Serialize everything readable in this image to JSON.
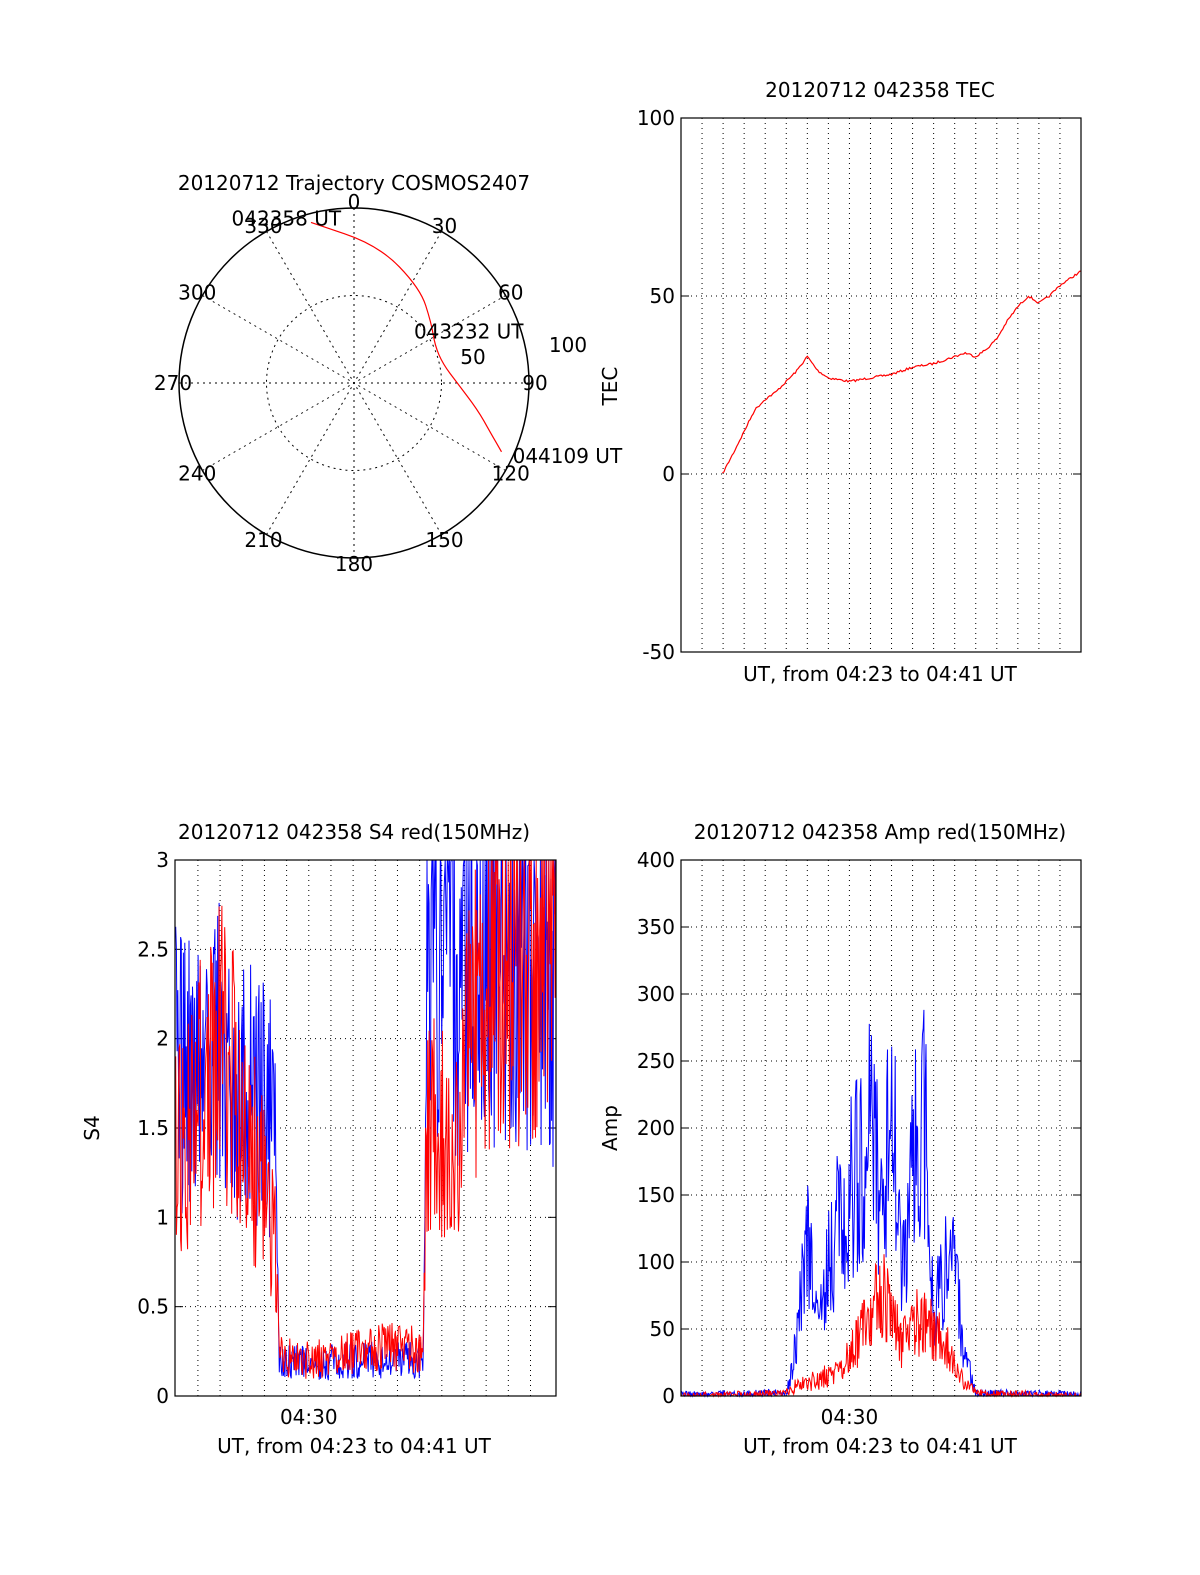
{
  "colors": {
    "axis": "#000000",
    "grid": "#000000",
    "trace_red": "#ff0000",
    "trace_blue": "#0000ff"
  },
  "chart_data": [
    {
      "id": "trajectory",
      "type": "polar",
      "title": "20120712 Trajectory COSMOS2407",
      "azimuth_labels": [
        "0",
        "30",
        "60",
        "90",
        "120",
        "150",
        "180",
        "210",
        "240",
        "270",
        "300",
        "330"
      ],
      "radial_labels": [
        "50",
        "100"
      ],
      "grid": true,
      "time_labels": [
        {
          "text": "042358 UT",
          "az": 330,
          "r": 100
        },
        {
          "text": "043232 UT",
          "az": 63,
          "r": 50
        },
        {
          "text": "044109 UT",
          "az": 115,
          "r": 100
        }
      ],
      "track": [
        {
          "az": 345,
          "r": 95
        },
        {
          "az": 10,
          "r": 80
        },
        {
          "az": 35,
          "r": 66
        },
        {
          "az": 52,
          "r": 56
        },
        {
          "az": 65,
          "r": 51
        },
        {
          "az": 78,
          "r": 52
        },
        {
          "az": 90,
          "r": 59
        },
        {
          "az": 102,
          "r": 72
        },
        {
          "az": 110,
          "r": 83
        },
        {
          "az": 115,
          "r": 93
        }
      ]
    },
    {
      "id": "tec",
      "type": "line",
      "title": "20120712 042358 TEC",
      "xlabel": "UT, from 04:23 to 04:41 UT",
      "ylabel": "TEC",
      "ylim": [
        -50,
        100
      ],
      "yticks": [
        "100",
        "50",
        "0",
        "-50"
      ],
      "xlim": [
        "04:22",
        "04:41"
      ],
      "grid": true,
      "series": [
        {
          "color": "red",
          "x": [
            "04:23:58",
            "04:24:30",
            "04:25:00",
            "04:25:30",
            "04:26:00",
            "04:26:30",
            "04:27:00",
            "04:27:30",
            "04:28:00",
            "04:28:30",
            "04:29:00",
            "04:30:00",
            "04:31:00",
            "04:32:00",
            "04:33:00",
            "04:34:00",
            "04:35:00",
            "04:35:30",
            "04:36:00",
            "04:36:30",
            "04:37:00",
            "04:37:30",
            "04:38:00",
            "04:38:30",
            "04:39:00",
            "04:39:30",
            "04:40:00",
            "04:40:30",
            "04:41:00"
          ],
          "y": [
            0,
            6,
            12,
            18,
            21,
            23,
            26,
            29,
            33,
            29,
            27,
            26,
            27,
            28,
            30,
            31,
            33,
            34,
            33,
            35,
            38,
            43,
            47,
            50,
            48,
            50,
            53,
            55,
            57
          ]
        }
      ]
    },
    {
      "id": "s4",
      "type": "line",
      "title": "20120712 042358 S4 red(150MHz)",
      "xlabel": "UT, from 04:23 to 04:41 UT",
      "ylabel": "S4",
      "ylim": [
        0,
        3
      ],
      "yticks": [
        "3",
        "2.5",
        "2",
        "1.5",
        "1",
        "0.5",
        "0"
      ],
      "xlim": [
        "04:23:58",
        "04:41:09"
      ],
      "xticks": [
        "04:30"
      ],
      "grid": true,
      "series": [
        {
          "color": "blue",
          "x": [
            "04:24:00",
            "04:26:00",
            "04:28:30",
            "04:28:40",
            "04:30:00",
            "04:32:00",
            "04:34:00",
            "04:35:10",
            "04:35:20",
            "04:36:30",
            "04:38:00",
            "04:40:00",
            "04:41:09"
          ],
          "y": [
            1.8,
            1.9,
            1.5,
            0.2,
            0.18,
            0.2,
            0.2,
            0.2,
            2.8,
            2.3,
            2.5,
            2.4,
            2.2
          ]
        },
        {
          "color": "red",
          "x": [
            "04:24:00",
            "04:26:00",
            "04:28:30",
            "04:28:40",
            "04:30:00",
            "04:32:00",
            "04:34:00",
            "04:35:10",
            "04:35:20",
            "04:36:30",
            "04:38:00",
            "04:40:00",
            "04:41:09"
          ],
          "y": [
            1.3,
            2.0,
            0.9,
            0.22,
            0.2,
            0.25,
            0.28,
            0.25,
            1.5,
            1.4,
            2.4,
            2.6,
            2.8
          ]
        }
      ]
    },
    {
      "id": "amp",
      "type": "line",
      "title": "20120712 042358 Amp red(150MHz)",
      "xlabel": "UT, from 04:23 to 04:41 UT",
      "ylabel": "Amp",
      "ylim": [
        0,
        400
      ],
      "yticks": [
        "400",
        "350",
        "300",
        "250",
        "200",
        "150",
        "100",
        "50",
        "0"
      ],
      "xlim": [
        "04:22",
        "04:41"
      ],
      "xticks": [
        "04:30"
      ],
      "grid": true,
      "series": [
        {
          "color": "blue",
          "x": [
            "04:22:00",
            "04:27:00",
            "04:27:20",
            "04:28:00",
            "04:28:30",
            "04:29:00",
            "04:30:00",
            "04:30:30",
            "04:31:00",
            "04:31:30",
            "04:32:00",
            "04:32:30",
            "04:33:00",
            "04:33:30",
            "04:34:00",
            "04:34:30",
            "04:35:00",
            "04:35:30",
            "04:36:00",
            "04:41:00"
          ],
          "y": [
            1,
            2,
            25,
            110,
            60,
            105,
            150,
            170,
            200,
            140,
            230,
            80,
            160,
            230,
            60,
            95,
            90,
            30,
            2,
            1
          ]
        },
        {
          "color": "red",
          "x": [
            "04:22:00",
            "04:27:00",
            "04:27:30",
            "04:28:30",
            "04:29:30",
            "04:30:00",
            "04:30:30",
            "04:31:00",
            "04:31:30",
            "04:32:00",
            "04:32:30",
            "04:33:00",
            "04:33:30",
            "04:34:00",
            "04:34:30",
            "04:35:00",
            "04:35:30",
            "04:36:00",
            "04:41:00"
          ],
          "y": [
            0,
            2,
            8,
            12,
            20,
            30,
            45,
            60,
            80,
            55,
            40,
            50,
            60,
            45,
            40,
            25,
            10,
            2,
            0
          ]
        }
      ]
    }
  ]
}
